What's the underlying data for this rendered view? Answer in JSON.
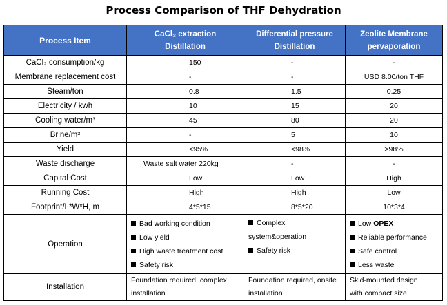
{
  "title": "Process Comparison of THF Dehydration",
  "header": {
    "col0": "Process Item",
    "col1_l1": "CaCl₂ extraction",
    "col1_l2": "Distillation",
    "col2_l1": "Differential pressure",
    "col2_l2": "Distillation",
    "col3_l1": "Zeolite Membrane",
    "col3_l2": "pervaporation"
  },
  "rows": [
    {
      "label": "CaCl₂ consumption/kg",
      "c1": "150",
      "c2": "-",
      "c3": "-"
    },
    {
      "label": "Membrane replacement cost",
      "c1": "-",
      "c2": "-",
      "c3": "USD 8.00/ton THF"
    },
    {
      "label": "Steam/ton",
      "c1": "0.8",
      "c2": "1.5",
      "c3": "0.25"
    },
    {
      "label": "Electricity / kwh",
      "c1": "10",
      "c2": "15",
      "c3": "20"
    },
    {
      "label": "Cooling water/m³",
      "c1": "45",
      "c2": "80",
      "c3": "20"
    },
    {
      "label": "Brine/m³",
      "c1": "-",
      "c2": "5",
      "c3": "10"
    },
    {
      "label": "Yield",
      "c1": "<95%",
      "c2": "<98%",
      "c3": ">98%"
    },
    {
      "label": "Waste discharge",
      "c1": "Waste salt water 220kg",
      "c2": "-",
      "c3": "-"
    },
    {
      "label": "Capital Cost",
      "c1": "Low",
      "c2": "Low",
      "c3": "High"
    },
    {
      "label": "Running Cost",
      "c1": "High",
      "c2": "High",
      "c3": "Low"
    },
    {
      "label": "Footprint/L*W*H, m",
      "c1": "4*5*15",
      "c2": "8*5*20",
      "c3": "10*3*4"
    }
  ],
  "operation": {
    "label": "Operation",
    "c1": [
      "Bad working condition",
      "Low yield",
      "High waste treatment cost",
      "Safety risk"
    ],
    "c2_l1": "Complex",
    "c2_l2": "system&operation",
    "c2_l3": "Safety risk",
    "c3_l1_prefix": "Low ",
    "c3_l1_bold": "OPEX",
    "c3": [
      "Reliable performance",
      "Safe control",
      "Less waste"
    ]
  },
  "installation": {
    "label": "Installation",
    "c1_l1": "Foundation required, complex",
    "c1_l2": "installation",
    "c2_l1": "Foundation required, onsite",
    "c2_l2": "installation",
    "c3_l1": "Skid-mounted design",
    "c3_l2": "with compact size."
  },
  "colors": {
    "header_bg": "#4472c4",
    "header_text": "#ffffff"
  },
  "icons": {
    "bullet": "square-bullet-icon"
  }
}
